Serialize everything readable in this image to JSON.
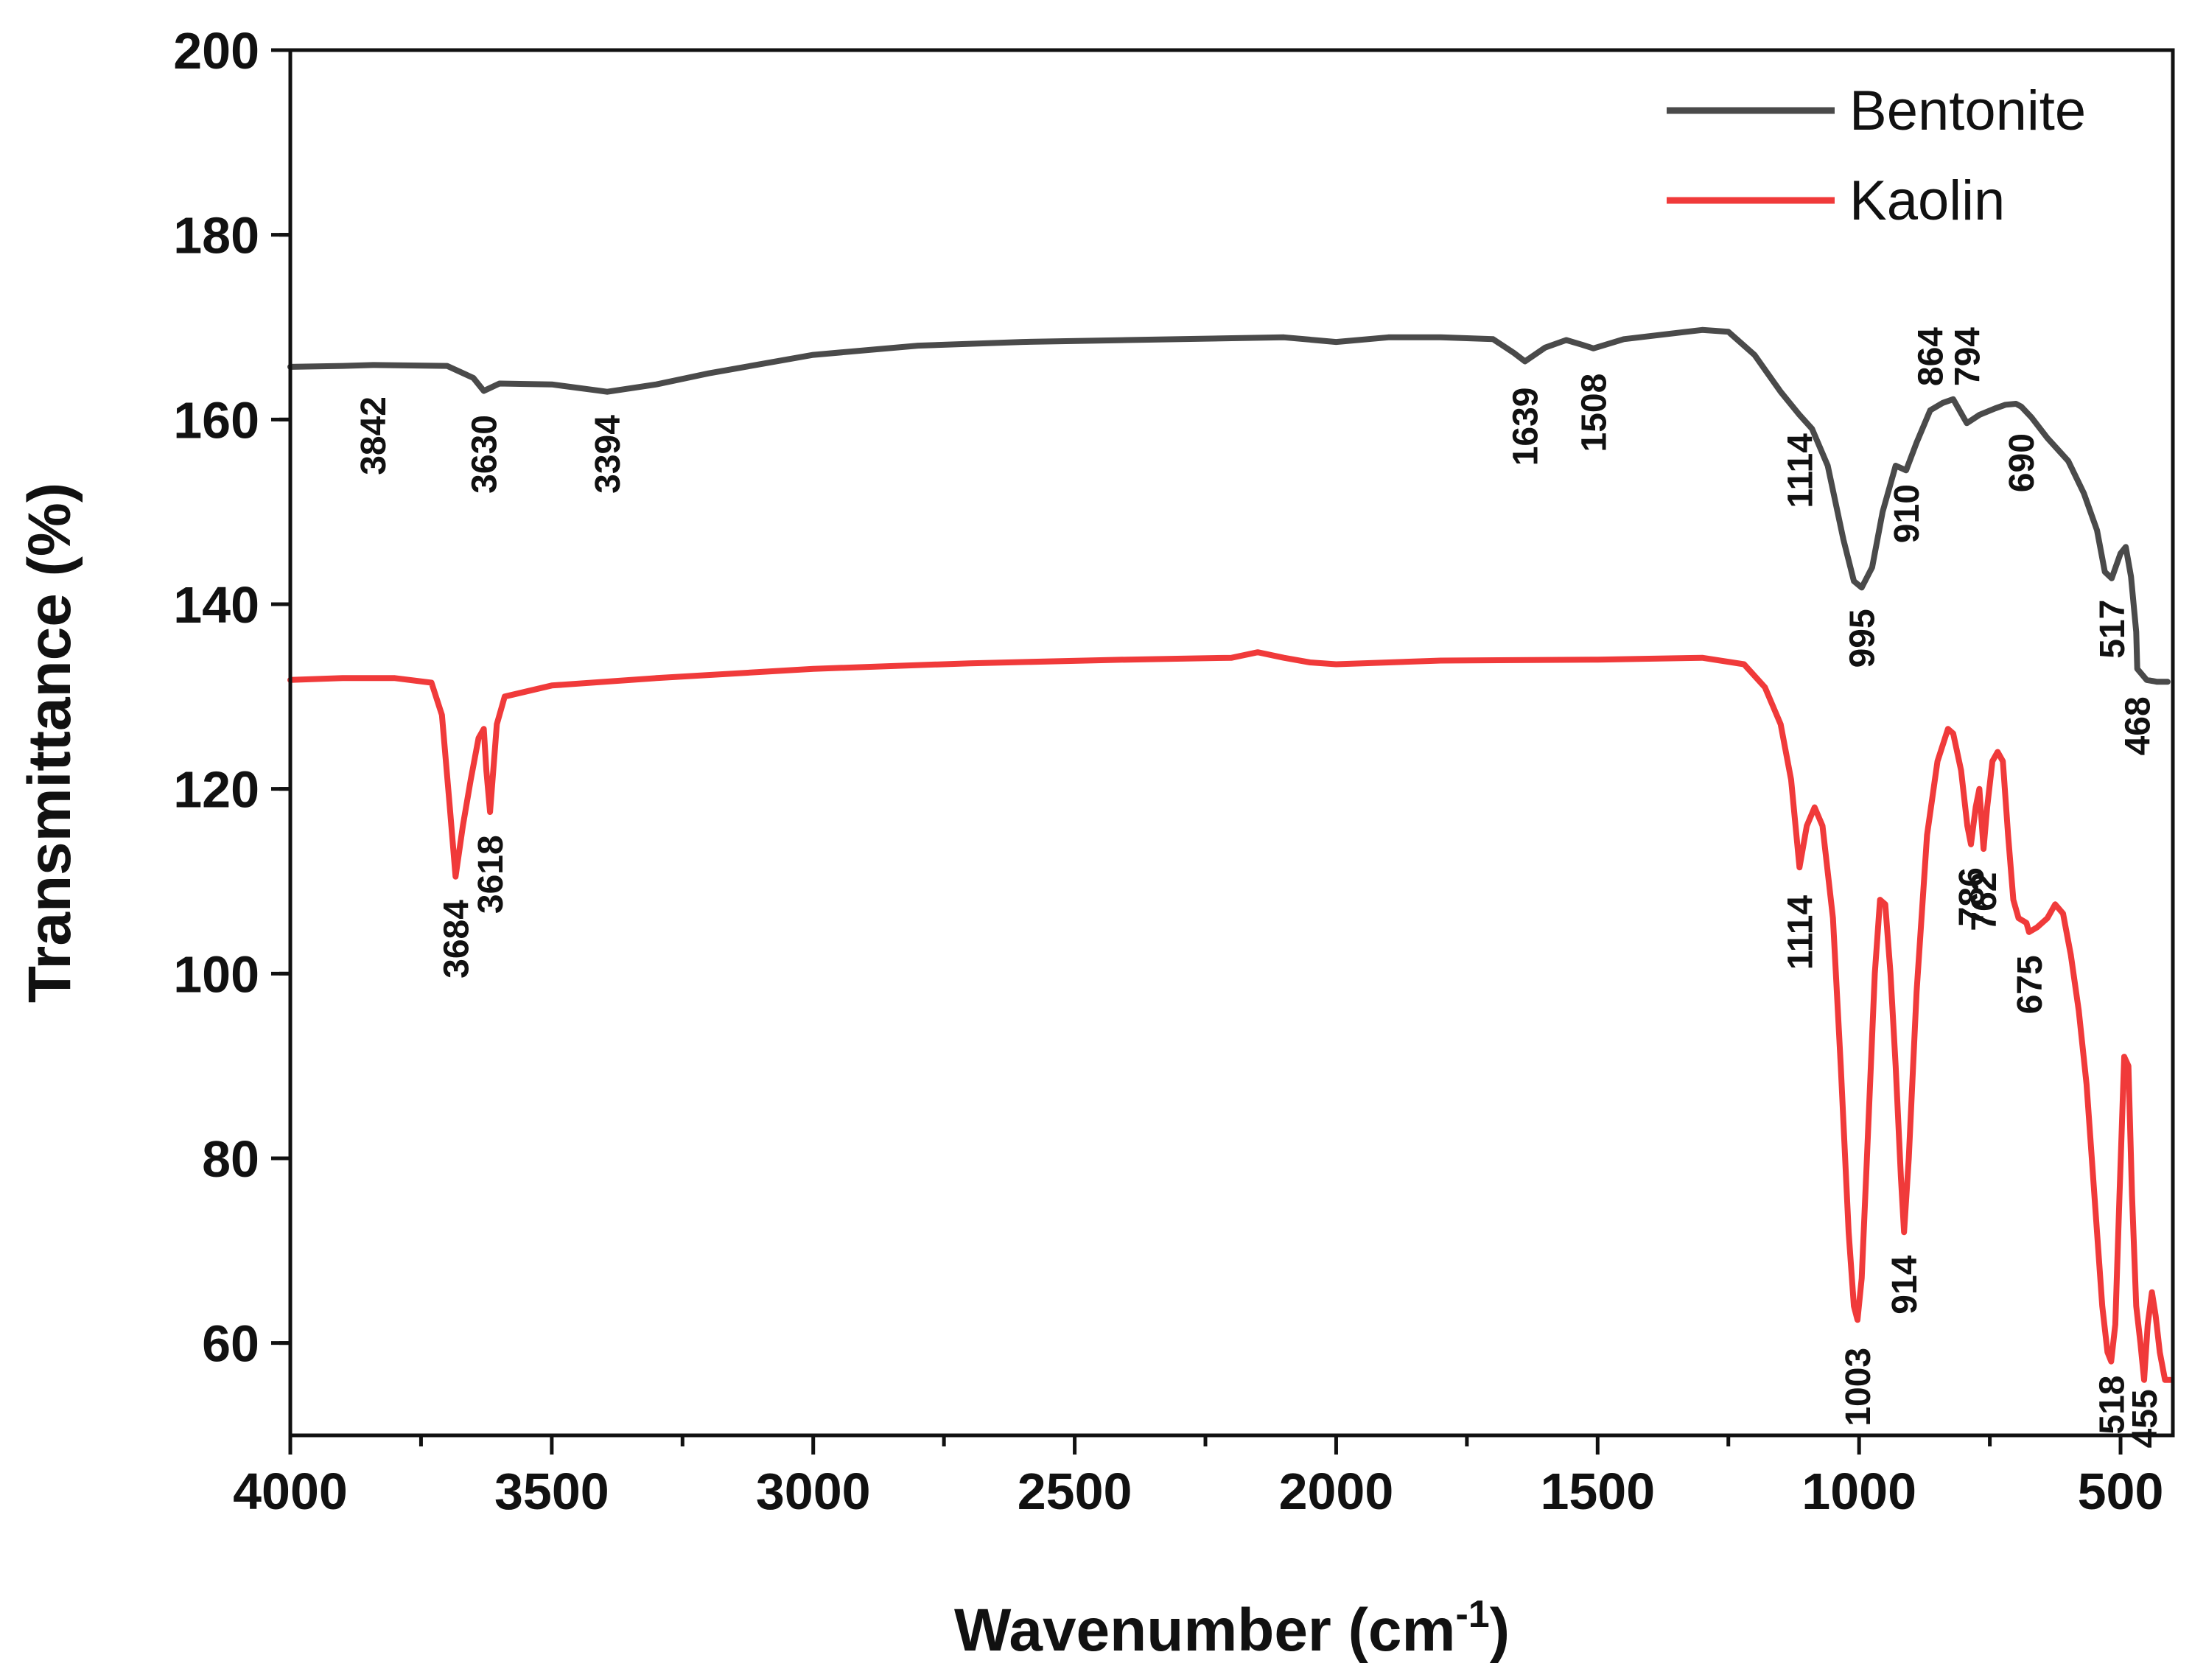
{
  "chart_data": {
    "type": "line",
    "xlabel": "Wavenumber (cm",
    "xlabel_sup": "-1",
    "xlabel_close": ")",
    "ylabel": "Transmittance (%)",
    "xlim": [
      4000,
      400
    ],
    "ylim": [
      50,
      200
    ],
    "xticks": [
      4000,
      3500,
      3000,
      2500,
      2000,
      1500,
      1000,
      500
    ],
    "yticks": [
      60,
      80,
      100,
      120,
      140,
      160,
      180,
      200
    ],
    "legend_position": "top-right",
    "series": [
      {
        "name": "Bentonite",
        "color": "#4a4a4a",
        "x": [
          4000,
          3900,
          3842,
          3700,
          3650,
          3630,
          3600,
          3500,
          3420,
          3394,
          3300,
          3200,
          3000,
          2800,
          2600,
          2400,
          2200,
          2100,
          2000,
          1900,
          1800,
          1700,
          1660,
          1639,
          1600,
          1560,
          1530,
          1508,
          1450,
          1300,
          1250,
          1200,
          1150,
          1114,
          1090,
          1060,
          1030,
          1010,
          995,
          975,
          955,
          930,
          910,
          890,
          864,
          840,
          820,
          800,
          794,
          770,
          740,
          720,
          700,
          690,
          670,
          640,
          600,
          570,
          545,
          530,
          517,
          500,
          490,
          480,
          470,
          468,
          450,
          430,
          410
        ],
        "y": [
          165.7,
          165.8,
          165.9,
          165.8,
          164.5,
          163.1,
          163.9,
          163.8,
          163.2,
          163.0,
          163.8,
          165.0,
          167.0,
          168.0,
          168.4,
          168.6,
          168.8,
          168.9,
          168.4,
          168.9,
          168.9,
          168.7,
          167.2,
          166.3,
          167.8,
          168.6,
          168.1,
          167.7,
          168.7,
          169.7,
          169.5,
          167.0,
          163.0,
          160.5,
          159.0,
          155.0,
          147.0,
          142.5,
          141.8,
          144.0,
          150.0,
          155.0,
          154.5,
          157.5,
          161.0,
          161.8,
          162.2,
          160.2,
          159.6,
          160.5,
          161.2,
          161.6,
          161.7,
          161.4,
          160.2,
          158.0,
          155.5,
          152.0,
          148.0,
          143.5,
          142.8,
          145.5,
          146.2,
          143.0,
          137.0,
          133.0,
          131.8,
          131.6,
          131.6
        ]
      },
      {
        "name": "Kaolin",
        "color": "#f03a3a",
        "x": [
          4000,
          3900,
          3800,
          3730,
          3710,
          3695,
          3684,
          3670,
          3655,
          3640,
          3630,
          3625,
          3618,
          3605,
          3590,
          3500,
          3300,
          3000,
          2700,
          2400,
          2200,
          2150,
          2100,
          2050,
          2000,
          1800,
          1500,
          1300,
          1220,
          1180,
          1150,
          1130,
          1114,
          1100,
          1085,
          1070,
          1050,
          1035,
          1020,
          1010,
          1003,
          995,
          985,
          970,
          960,
          950,
          940,
          930,
          920,
          914,
          905,
          890,
          870,
          850,
          830,
          820,
          805,
          793,
          786,
          777,
          770,
          762,
          755,
          745,
          735,
          725,
          715,
          705,
          695,
          680,
          675,
          660,
          640,
          625,
          610,
          595,
          580,
          565,
          545,
          535,
          525,
          518,
          510,
          502,
          493,
          485,
          478,
          470,
          462,
          455,
          448,
          440,
          433,
          425,
          415,
          405
        ],
        "y": [
          131.8,
          132.0,
          132.0,
          131.5,
          128.0,
          118.0,
          110.5,
          116.0,
          121.0,
          125.5,
          126.5,
          122.0,
          117.5,
          127.0,
          130.0,
          131.2,
          132.0,
          133.0,
          133.6,
          134.0,
          134.2,
          134.8,
          134.2,
          133.7,
          133.5,
          133.9,
          134.0,
          134.2,
          133.5,
          131.0,
          127.0,
          121.0,
          111.5,
          116.0,
          118.0,
          116.0,
          106.0,
          90.0,
          72.0,
          64.0,
          62.5,
          67.0,
          80.0,
          100.0,
          108.0,
          107.5,
          100.0,
          90.0,
          78.0,
          72.0,
          80.0,
          98.0,
          115.0,
          123.0,
          126.5,
          126.0,
          122.0,
          116.0,
          114.0,
          118.0,
          120.0,
          113.5,
          118.0,
          123.0,
          124.0,
          123.0,
          115.0,
          108.0,
          106.0,
          105.5,
          104.5,
          105.0,
          106.0,
          107.5,
          106.5,
          102.0,
          96.0,
          88.0,
          72.0,
          64.0,
          59.0,
          58.0,
          62.0,
          76.0,
          91.0,
          90.0,
          76.0,
          64.0,
          60.0,
          56.0,
          62.0,
          65.5,
          63.0,
          59.0,
          56.0,
          56.0
        ]
      }
    ],
    "annotations": [
      {
        "text": "3842",
        "x": 3842,
        "y": 162.5,
        "angle": -90
      },
      {
        "text": "3630",
        "x": 3630,
        "y": 160.5,
        "angle": -90
      },
      {
        "text": "3394",
        "x": 3394,
        "y": 160.5,
        "angle": -90
      },
      {
        "text": "1639",
        "x": 1639,
        "y": 163.5,
        "angle": -90
      },
      {
        "text": "1508",
        "x": 1508,
        "y": 165.0,
        "angle": -90
      },
      {
        "text": "1114",
        "x": 1114,
        "y": 158.5,
        "angle": -90
      },
      {
        "text": "995",
        "x": 995,
        "y": 139.5,
        "angle": -90
      },
      {
        "text": "910",
        "x": 910,
        "y": 153.0,
        "angle": -90
      },
      {
        "text": "864",
        "x": 864,
        "y": 170.0,
        "angle": -90
      },
      {
        "text": "794",
        "x": 794,
        "y": 170.0,
        "angle": -90
      },
      {
        "text": "690",
        "x": 690,
        "y": 158.5,
        "angle": -90
      },
      {
        "text": "517",
        "x": 517,
        "y": 140.5,
        "angle": -90
      },
      {
        "text": "468",
        "x": 468,
        "y": 130.0,
        "angle": -90
      },
      {
        "text": "3684",
        "x": 3684,
        "y": 108.0,
        "angle": -90
      },
      {
        "text": "3618",
        "x": 3618,
        "y": 115.0,
        "angle": -90
      },
      {
        "text": "1114",
        "x": 1114,
        "y": 108.5,
        "angle": -90
      },
      {
        "text": "1003",
        "x": 1003,
        "y": 59.5,
        "angle": -90
      },
      {
        "text": "914",
        "x": 914,
        "y": 69.5,
        "angle": -90
      },
      {
        "text": "786",
        "x": 786,
        "y": 111.5,
        "angle": -90
      },
      {
        "text": "762",
        "x": 762,
        "y": 111.0,
        "angle": -90
      },
      {
        "text": "675",
        "x": 675,
        "y": 102.0,
        "angle": -90
      },
      {
        "text": "518",
        "x": 518,
        "y": 56.5,
        "angle": -90
      },
      {
        "text": "455",
        "x": 455,
        "y": 55.0,
        "angle": -90
      }
    ]
  }
}
